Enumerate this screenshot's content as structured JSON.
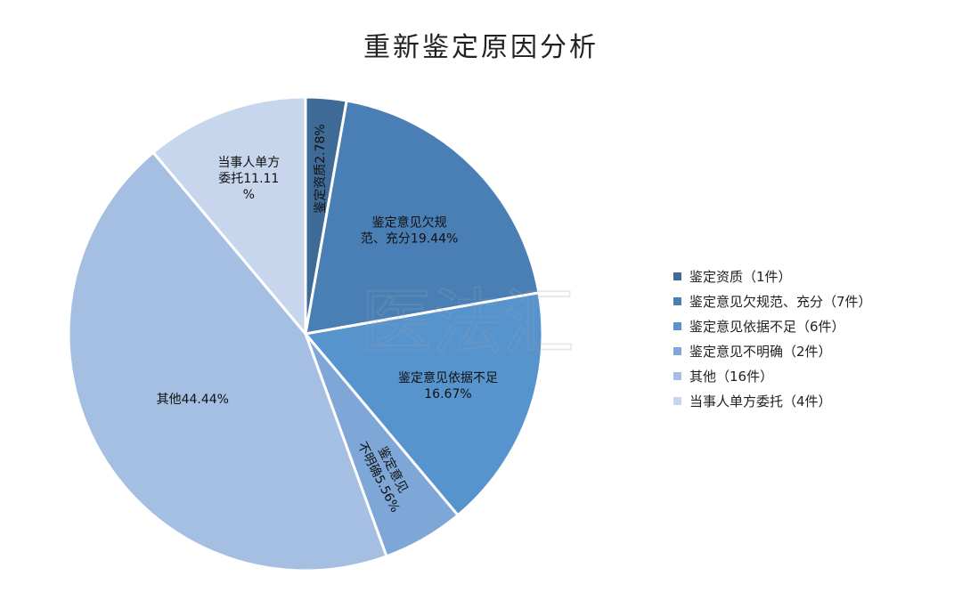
{
  "chart_data": {
    "type": "pie",
    "title": "重新鉴定原因分析",
    "slices": [
      {
        "name": "鉴定资质",
        "value": 1,
        "percent_label": "鉴定资质2.78%",
        "legend": "鉴定资质（1件）",
        "color": "#3e6b97"
      },
      {
        "name": "鉴定意见欠规范、充分",
        "value": 7,
        "percent_label": "鉴定意见欠规范、充分19.44%",
        "legend": "鉴定意见欠规范、充分（7件）",
        "color": "#4a7fb5"
      },
      {
        "name": "鉴定意见依据不足",
        "value": 6,
        "percent_label": "鉴定意见依据不足16.67%",
        "legend": "鉴定意见依据不足（6件）",
        "color": "#5793cd"
      },
      {
        "name": "鉴定意见不明确",
        "value": 2,
        "percent_label": "鉴定意见不明确5.56%",
        "legend": "鉴定意见不明确（2件）",
        "color": "#7ea7d8"
      },
      {
        "name": "其他",
        "value": 16,
        "percent_label": "其他44.44%",
        "legend": "其他（16件）",
        "color": "#a4bfe2"
      },
      {
        "name": "当事人单方委托",
        "value": 4,
        "percent_label": "当事人单方委托11.11%",
        "legend": "当事人单方委托（4件）",
        "color": "#c7d6ec"
      }
    ],
    "legend_position": "right"
  },
  "watermark": {
    "text": "医法汇"
  }
}
